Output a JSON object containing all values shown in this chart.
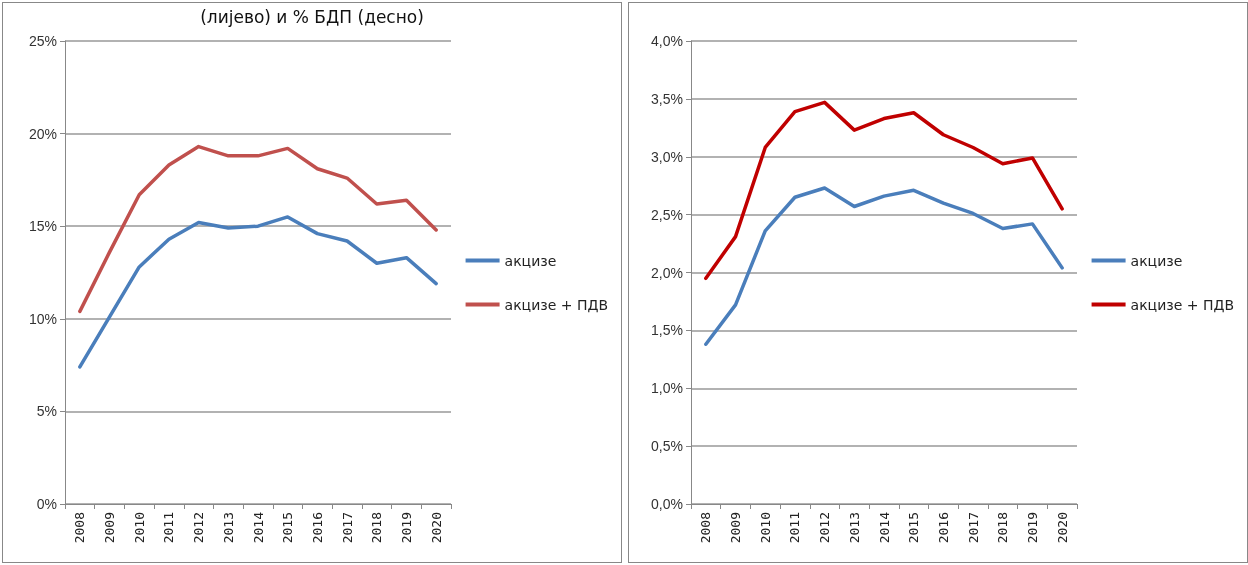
{
  "chart_data": [
    {
      "type": "line",
      "title": "(лијево) и % БДП (десно)",
      "categories": [
        "2008",
        "2009",
        "2010",
        "2011",
        "2012",
        "2013",
        "2014",
        "2015",
        "2016",
        "2017",
        "2018",
        "2019",
        "2020"
      ],
      "series": [
        {
          "name": "акцизе",
          "color": "#4a7ebb",
          "values": [
            7.4,
            10.1,
            12.8,
            14.3,
            15.2,
            14.9,
            15.0,
            15.5,
            14.6,
            14.2,
            13.0,
            13.3,
            11.9
          ]
        },
        {
          "name": "акцизе + ПДВ",
          "color": "#c0504d",
          "values": [
            10.4,
            13.6,
            16.7,
            18.3,
            19.3,
            18.8,
            18.8,
            19.2,
            18.1,
            17.6,
            16.2,
            16.4,
            14.8
          ]
        }
      ],
      "ylim": [
        0,
        25
      ],
      "yticks": [
        {
          "value": 0,
          "label": "0%"
        },
        {
          "value": 5,
          "label": "5%"
        },
        {
          "value": 10,
          "label": "10%"
        },
        {
          "value": 15,
          "label": "15%"
        },
        {
          "value": 20,
          "label": "20%"
        },
        {
          "value": 25,
          "label": "25%"
        }
      ],
      "grid": "y",
      "legend": "right",
      "marker": "none",
      "line_style": "solid"
    },
    {
      "type": "line",
      "categories": [
        "2008",
        "2009",
        "2010",
        "2011",
        "2012",
        "2013",
        "2014",
        "2015",
        "2016",
        "2017",
        "2018",
        "2019",
        "2020"
      ],
      "series": [
        {
          "name": "акцизе",
          "color": "#4a7ebb",
          "values": [
            1.38,
            1.72,
            2.36,
            2.65,
            2.73,
            2.57,
            2.66,
            2.71,
            2.6,
            2.51,
            2.38,
            2.42,
            2.04
          ]
        },
        {
          "name": "акцизе + ПДВ",
          "color": "#c00000",
          "values": [
            1.95,
            2.31,
            3.08,
            3.39,
            3.47,
            3.23,
            3.33,
            3.38,
            3.19,
            3.08,
            2.94,
            2.99,
            2.55
          ]
        }
      ],
      "ylim": [
        0,
        4
      ],
      "yticks": [
        {
          "value": 0,
          "label": "0,0%"
        },
        {
          "value": 0.5,
          "label": "0,5%"
        },
        {
          "value": 1,
          "label": "1,0%"
        },
        {
          "value": 1.5,
          "label": "1,5%"
        },
        {
          "value": 2,
          "label": "2,0%"
        },
        {
          "value": 2.5,
          "label": "2,5%"
        },
        {
          "value": 3,
          "label": "3,0%"
        },
        {
          "value": 3.5,
          "label": "3,5%"
        },
        {
          "value": 4,
          "label": "4,0%"
        }
      ],
      "grid": "y",
      "legend": "right",
      "marker": "none",
      "line_style": "solid"
    }
  ]
}
